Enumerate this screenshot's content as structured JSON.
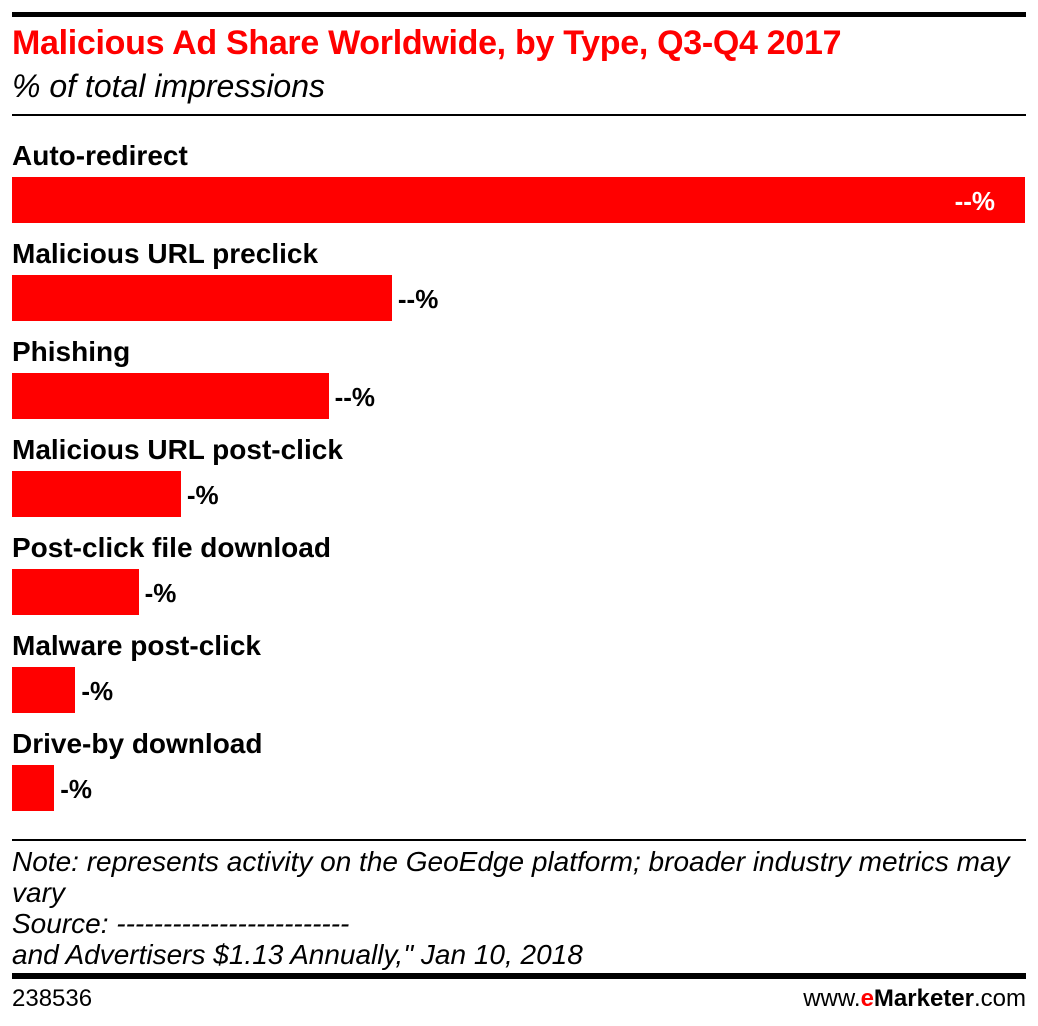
{
  "colors": {
    "bar": "#ff0000",
    "title": "#ff0000",
    "inside_label": "#ffffff",
    "outside_label": "#000000"
  },
  "chart_data": {
    "type": "bar",
    "orientation": "horizontal",
    "title": "Malicious Ad Share Worldwide, by Type, Q3-Q4 2017",
    "subtitle": "% of total impressions",
    "categories": [
      "Auto-redirect",
      "Malicious URL preclick",
      "Phishing",
      "Malicious URL post-click",
      "Post-click file download",
      "Malware post-click",
      "Drive-by download"
    ],
    "values": [
      48,
      18,
      15,
      8,
      6,
      3,
      2
    ],
    "data_labels": [
      "--%",
      "--%",
      "--%",
      "-%",
      "-%",
      "-%",
      "-%"
    ],
    "grid": false
  },
  "footer": {
    "note": "Note: represents activity on the GeoEdge platform; broader industry metrics may vary",
    "source": "Source: -------------------------",
    "source_cont": "and Advertisers $1.13 Annually,\" Jan 10, 2018",
    "chart_id": "238536",
    "brand_prefix": "www.",
    "brand_e": "e",
    "brand_name": "Marketer",
    "brand_suffix": ".com"
  }
}
